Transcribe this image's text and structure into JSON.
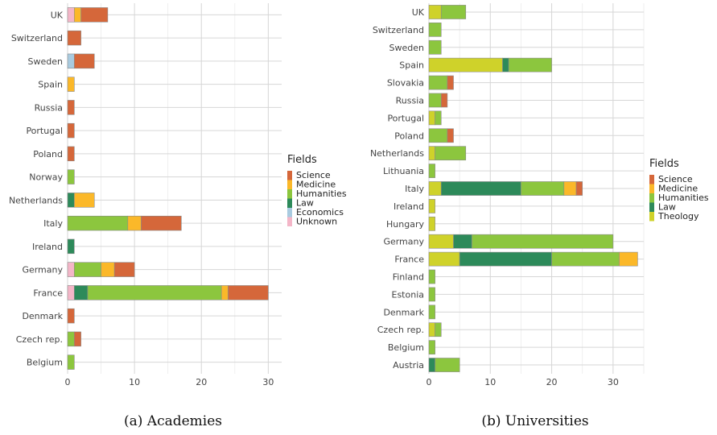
{
  "charts": [
    {
      "caption": "(a) Academies",
      "chart_data": {
        "type": "bar",
        "orientation": "horizontal",
        "stacked": true,
        "categories": [
          "UK",
          "Switzerland",
          "Sweden",
          "Spain",
          "Russia",
          "Portugal",
          "Poland",
          "Norway",
          "Netherlands",
          "Italy",
          "Ireland",
          "Germany",
          "France",
          "Denmark",
          "Czech rep.",
          "Belgium"
        ],
        "series": [
          {
            "name": "Unknown",
            "color": "#f4b6c8",
            "values": [
              1,
              0,
              0,
              0,
              0,
              0,
              0,
              0,
              0,
              0,
              0,
              1,
              1,
              0,
              0,
              0
            ]
          },
          {
            "name": "Economics",
            "color": "#a9cbe0",
            "values": [
              0,
              0,
              1,
              0,
              0,
              0,
              0,
              0,
              0,
              0,
              0,
              0,
              0,
              0,
              0,
              0
            ]
          },
          {
            "name": "Law",
            "color": "#2d8a5a",
            "values": [
              0,
              0,
              0,
              0,
              0,
              0,
              0,
              0,
              1,
              0,
              1,
              0,
              2,
              0,
              0,
              0
            ]
          },
          {
            "name": "Humanities",
            "color": "#8cc63e",
            "values": [
              0,
              0,
              0,
              0,
              0,
              0,
              0,
              1,
              0,
              9,
              0,
              4,
              20,
              0,
              1,
              1
            ]
          },
          {
            "name": "Medicine",
            "color": "#fbb829",
            "values": [
              1,
              0,
              0,
              1,
              0,
              0,
              0,
              0,
              3,
              2,
              0,
              2,
              1,
              0,
              0,
              0
            ]
          },
          {
            "name": "Science",
            "color": "#d5673a",
            "values": [
              4,
              2,
              3,
              0,
              1,
              1,
              1,
              0,
              0,
              6,
              0,
              3,
              6,
              1,
              1,
              0
            ]
          }
        ],
        "xlim": [
          0,
          32
        ],
        "xticks": [
          0,
          10,
          20,
          30
        ],
        "grid": true,
        "legend": {
          "title": "Fields",
          "placement": "right",
          "entries": [
            {
              "label": "Science",
              "color": "#d5673a"
            },
            {
              "label": "Medicine",
              "color": "#fbb829"
            },
            {
              "label": "Humanities",
              "color": "#8cc63e"
            },
            {
              "label": "Law",
              "color": "#2d8a5a"
            },
            {
              "label": "Economics",
              "color": "#a9cbe0"
            },
            {
              "label": "Unknown",
              "color": "#f4b6c8"
            }
          ]
        }
      }
    },
    {
      "caption": "(b) Universities",
      "chart_data": {
        "type": "bar",
        "orientation": "horizontal",
        "stacked": true,
        "categories": [
          "UK",
          "Switzerland",
          "Sweden",
          "Spain",
          "Slovakia",
          "Russia",
          "Portugal",
          "Poland",
          "Netherlands",
          "Lithuania",
          "Italy",
          "Ireland",
          "Hungary",
          "Germany",
          "France",
          "Finland",
          "Estonia",
          "Denmark",
          "Czech rep.",
          "Belgium",
          "Austria"
        ],
        "series": [
          {
            "name": "Theology",
            "color": "#cfd22a",
            "values": [
              2,
              0,
              0,
              12,
              0,
              0,
              1,
              0,
              1,
              0,
              2,
              1,
              1,
              4,
              5,
              0,
              0,
              0,
              1,
              0,
              0
            ]
          },
          {
            "name": "Law",
            "color": "#2d8a5a",
            "values": [
              0,
              0,
              0,
              1,
              0,
              0,
              0,
              0,
              0,
              0,
              13,
              0,
              0,
              3,
              15,
              0,
              0,
              0,
              0,
              0,
              1
            ]
          },
          {
            "name": "Humanities",
            "color": "#8cc63e",
            "values": [
              4,
              2,
              2,
              7,
              3,
              2,
              1,
              3,
              5,
              1,
              7,
              0,
              0,
              23,
              11,
              1,
              1,
              1,
              1,
              1,
              4
            ]
          },
          {
            "name": "Medicine",
            "color": "#fbb829",
            "values": [
              0,
              0,
              0,
              0,
              0,
              0,
              0,
              0,
              0,
              0,
              2,
              0,
              0,
              0,
              3,
              0,
              0,
              0,
              0,
              0,
              0
            ]
          },
          {
            "name": "Science",
            "color": "#d5673a",
            "values": [
              0,
              0,
              0,
              0,
              1,
              1,
              0,
              1,
              0,
              0,
              1,
              0,
              0,
              0,
              0,
              0,
              0,
              0,
              0,
              0,
              0
            ]
          }
        ],
        "xlim": [
          0,
          35
        ],
        "xticks": [
          0,
          10,
          20,
          30
        ],
        "grid": true,
        "legend": {
          "title": "Fields",
          "placement": "right",
          "entries": [
            {
              "label": "Science",
              "color": "#d5673a"
            },
            {
              "label": "Medicine",
              "color": "#fbb829"
            },
            {
              "label": "Humanities",
              "color": "#8cc63e"
            },
            {
              "label": "Law",
              "color": "#2d8a5a"
            },
            {
              "label": "Theology",
              "color": "#cfd22a"
            }
          ]
        }
      }
    }
  ]
}
